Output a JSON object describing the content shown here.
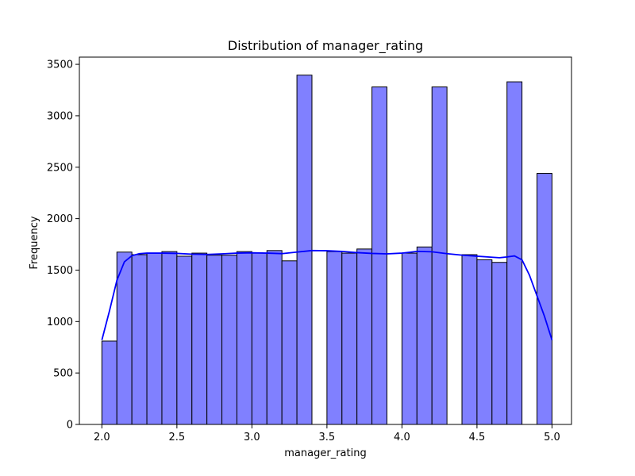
{
  "chart_data": {
    "type": "bar",
    "title": "Distribution of manager_rating",
    "xlabel": "manager_rating",
    "ylabel": "Frequency",
    "xlim": [
      1.85,
      5.13
    ],
    "ylim": [
      0,
      3570
    ],
    "x_ticks": [
      2.0,
      2.5,
      3.0,
      3.5,
      4.0,
      4.5,
      5.0
    ],
    "x_tick_labels": [
      "2.0",
      "2.5",
      "3.0",
      "3.5",
      "4.0",
      "4.5",
      "5.0"
    ],
    "y_ticks": [
      0,
      500,
      1000,
      1500,
      2000,
      2500,
      3000,
      3500
    ],
    "y_tick_labels": [
      "0",
      "500",
      "1000",
      "1500",
      "2000",
      "2500",
      "3000",
      "3500"
    ],
    "grid": false,
    "bins": {
      "start": 2.0,
      "width": 0.1,
      "counts": [
        810,
        1675,
        1650,
        1665,
        1680,
        1635,
        1665,
        1645,
        1645,
        1680,
        1665,
        1690,
        1590,
        3395,
        0,
        1680,
        1665,
        1705,
        3280,
        0,
        1665,
        1725,
        3280,
        0,
        1650,
        1600,
        1575,
        3330,
        0,
        2440
      ]
    },
    "kde": {
      "x": [
        2.0,
        2.05,
        2.1,
        2.15,
        2.2,
        2.25,
        2.3,
        2.4,
        2.5,
        2.6,
        2.7,
        2.8,
        2.9,
        3.0,
        3.1,
        3.2,
        3.3,
        3.4,
        3.5,
        3.6,
        3.7,
        3.8,
        3.9,
        4.0,
        4.1,
        4.2,
        4.3,
        4.4,
        4.5,
        4.6,
        4.65,
        4.7,
        4.75,
        4.8,
        4.85,
        4.9,
        4.95,
        5.0
      ],
      "y": [
        820,
        1100,
        1400,
        1580,
        1640,
        1660,
        1665,
        1665,
        1662,
        1655,
        1652,
        1658,
        1665,
        1668,
        1665,
        1660,
        1675,
        1690,
        1688,
        1682,
        1670,
        1662,
        1658,
        1665,
        1682,
        1678,
        1660,
        1645,
        1635,
        1625,
        1620,
        1628,
        1638,
        1600,
        1450,
        1250,
        1050,
        820
      ]
    },
    "colors": {
      "bar_fill": "#8080ff",
      "bar_edge": "#000000",
      "kde_line": "#0000ff",
      "axes": "#000000",
      "background": "#ffffff"
    }
  }
}
